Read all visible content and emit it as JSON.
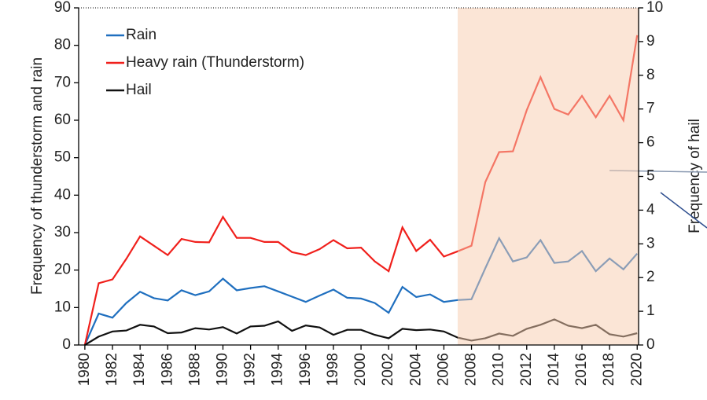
{
  "chart_data": {
    "type": "line",
    "x": [
      1980,
      1981,
      1982,
      1983,
      1984,
      1985,
      1986,
      1987,
      1988,
      1989,
      1990,
      1991,
      1992,
      1993,
      1994,
      1995,
      1996,
      1997,
      1998,
      1999,
      2000,
      2001,
      2002,
      2003,
      2004,
      2005,
      2006,
      2007,
      2008,
      2009,
      2010,
      2011,
      2012,
      2013,
      2014,
      2015,
      2016,
      2017,
      2018,
      2019,
      2020
    ],
    "series": [
      {
        "name": "Rain",
        "color": "#1f6fbf",
        "values": [
          0,
          8.4,
          7.3,
          11.2,
          14.2,
          12.5,
          11.9,
          14.6,
          13.3,
          14.3,
          17.7,
          14.6,
          15.2,
          15.7,
          14.3,
          12.9,
          11.5,
          13.2,
          14.8,
          12.6,
          12.4,
          11.2,
          8.6,
          15.5,
          12.8,
          13.5,
          11.5,
          12,
          12.2,
          20.5,
          28.5,
          22.3,
          23.4,
          28,
          21.9,
          22.3,
          25.1,
          19.7,
          23.1,
          20.2,
          24.4
        ]
      },
      {
        "name": "Heavy rain (Thunderstorm)",
        "color": "#f0201c",
        "values": [
          0,
          16.5,
          17.5,
          23,
          29,
          26.5,
          24,
          28.3,
          27.5,
          27.4,
          34.2,
          28.6,
          28.6,
          27.5,
          27.5,
          24.8,
          24,
          25.6,
          28,
          25.8,
          26,
          22.3,
          19.7,
          31.4,
          25.1,
          28.1,
          23.6,
          25,
          26.5,
          43.5,
          51.5,
          51.7,
          62.7,
          71.5,
          63,
          61.5,
          66.5,
          60.8,
          66.5,
          60,
          82.7
        ]
      },
      {
        "name": "Hail",
        "color": "#111111",
        "axis": "y2",
        "values": [
          0,
          0.25,
          0.4,
          0.43,
          0.6,
          0.55,
          0.35,
          0.37,
          0.5,
          0.46,
          0.53,
          0.34,
          0.55,
          0.57,
          0.7,
          0.42,
          0.58,
          0.52,
          0.3,
          0.45,
          0.45,
          0.3,
          0.2,
          0.48,
          0.44,
          0.46,
          0.4,
          0.22,
          0.13,
          0.2,
          0.34,
          0.27,
          0.48,
          0.6,
          0.76,
          0.57,
          0.5,
          0.6,
          0.32,
          0.25,
          0.35
        ]
      }
    ],
    "ylabel": "Frequency of thunderstorm and rain",
    "y2label": "Frequency of hail",
    "xlim": [
      1979.55,
      2020.1
    ],
    "xticks": [
      1980,
      1982,
      1984,
      1986,
      1988,
      1990,
      1992,
      1994,
      1996,
      1998,
      2000,
      2002,
      2004,
      2006,
      2008,
      2010,
      2012,
      2014,
      2016,
      2018,
      2020
    ],
    "ylim": [
      0,
      90
    ],
    "yticks": [
      0,
      10,
      20,
      30,
      40,
      50,
      60,
      70,
      80,
      90
    ],
    "y2lim": [
      0,
      10
    ],
    "y2ticks": [
      0,
      1,
      2,
      3,
      4,
      5,
      6,
      7,
      8,
      9,
      10
    ],
    "shaded_from": 2007,
    "shade_color": "#f8cbad",
    "legend": "upper left"
  }
}
